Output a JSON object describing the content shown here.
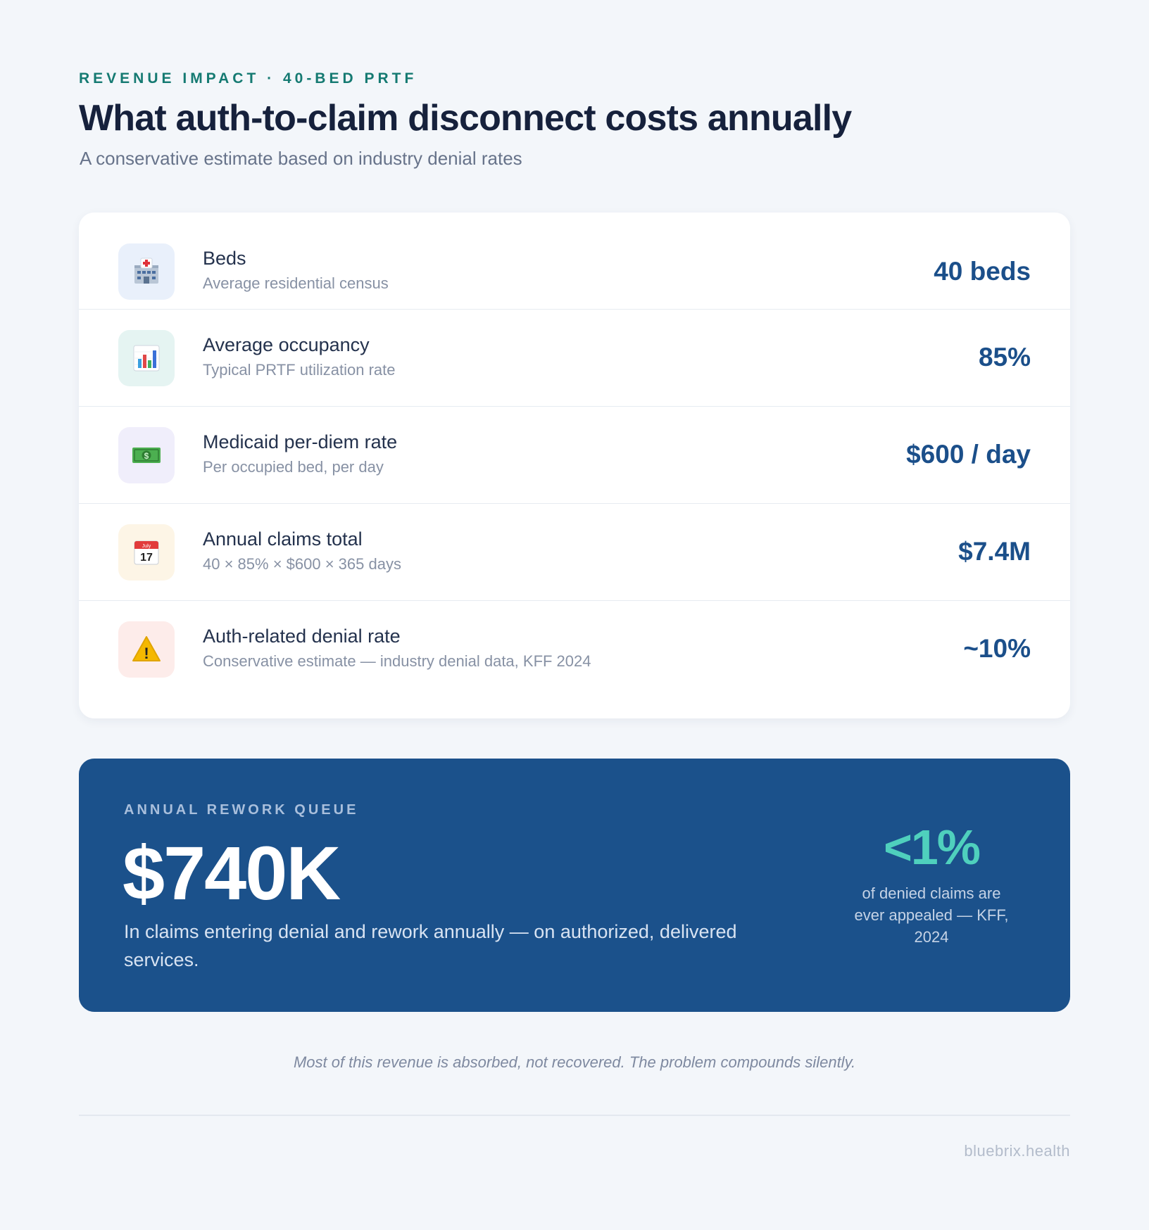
{
  "header": {
    "eyebrow": "REVENUE IMPACT · 40-BED PRTF",
    "title": "What auth-to-claim disconnect costs annually",
    "subtitle": "A conservative estimate based on industry denial rates"
  },
  "rows": [
    {
      "icon": "hospital-icon",
      "icon_bg": "#e9f0fb",
      "title": "Beds",
      "subtitle": "Average residential census",
      "value": "40 beds"
    },
    {
      "icon": "bar-chart-icon",
      "icon_bg": "#e5f4f2",
      "title": "Average occupancy",
      "subtitle": "Typical PRTF utilization rate",
      "value": "85%"
    },
    {
      "icon": "money-icon",
      "icon_bg": "#f0eefb",
      "title": "Medicaid per-diem rate",
      "subtitle": "Per occupied bed, per day",
      "value": "$600 / day"
    },
    {
      "icon": "calendar-icon",
      "icon_bg": "#fdf5e6",
      "title": "Annual claims total",
      "subtitle": "40 × 85% × $600 × 365 days",
      "value": "$7.4M"
    },
    {
      "icon": "warning-icon",
      "icon_bg": "#fdecea",
      "title": "Auth-related denial rate",
      "subtitle": "Conservative estimate — industry denial data, KFF 2024",
      "value": "~10%"
    }
  ],
  "calendar_icon": {
    "month": "July",
    "day": "17"
  },
  "money_icon": {
    "symbol": "$"
  },
  "warning_icon": {
    "symbol": "!"
  },
  "banner": {
    "eyebrow": "ANNUAL REWORK QUEUE",
    "amount": "$740K",
    "description": "In claims entering denial and rework annually — on authorized, delivered services.",
    "stat_value": "<1%",
    "stat_description": "of denied claims are ever appealed — KFF, 2024"
  },
  "footnote": "Most of this revenue is absorbed, not recovered. The problem compounds silently.",
  "brand": "bluebrix.health",
  "colors": {
    "background": "#f3f6fa",
    "accent_teal": "#157a72",
    "value_blue": "#1b4f8a",
    "banner_blue": "#1b518b",
    "stat_teal": "#4fd0bd"
  }
}
